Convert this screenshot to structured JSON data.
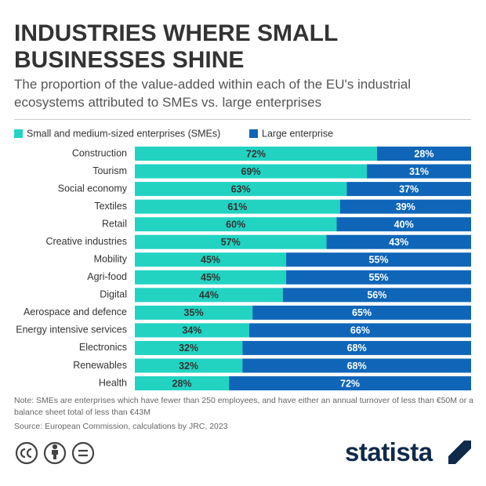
{
  "chart_data": {
    "type": "stacked-bar-horizontal",
    "title": "INDUSTRIES WHERE SMALL BUSINESSES SHINE",
    "subtitle": "The proportion of the value-added within each of the EU's industrial ecosystems attributed to SMEs vs. large enterprises",
    "categories": [
      "Construction",
      "Tourism",
      "Social economy",
      "Textiles",
      "Retail",
      "Creative industries",
      "Mobility",
      "Agri-food",
      "Digital",
      "Aerospace and defence",
      "Energy intensive services",
      "Electronics",
      "Renewables",
      "Health"
    ],
    "series": [
      {
        "name": "Small and medium-sized enterprises (SMEs)",
        "color": "#22d3c2",
        "values": [
          72,
          69,
          63,
          61,
          60,
          57,
          45,
          45,
          44,
          35,
          34,
          32,
          32,
          28
        ],
        "value_labels": [
          "72%",
          "69%",
          "63%",
          "61%",
          "60%",
          "57%",
          "45%",
          "45%",
          "44%",
          "35%",
          "34%",
          "32%",
          "32%",
          "28%"
        ]
      },
      {
        "name": "Large enterprise",
        "color": "#0f66b8",
        "values": [
          28,
          31,
          37,
          39,
          40,
          43,
          55,
          55,
          56,
          65,
          66,
          68,
          68,
          72
        ],
        "value_labels": [
          "28%",
          "31%",
          "37%",
          "39%",
          "40%",
          "43%",
          "55%",
          "55%",
          "56%",
          "65%",
          "66%",
          "68%",
          "68%",
          "72%"
        ]
      }
    ],
    "xlim": [
      0,
      100
    ],
    "note": "Note: SMEs are enterprises which have fewer than 250 employees, and have either an annual turnover of less than €50M or a balance sheet total of less than €43M",
    "source": "Source: European Commission, calculations by JRC, 2023",
    "brand": "statista"
  }
}
